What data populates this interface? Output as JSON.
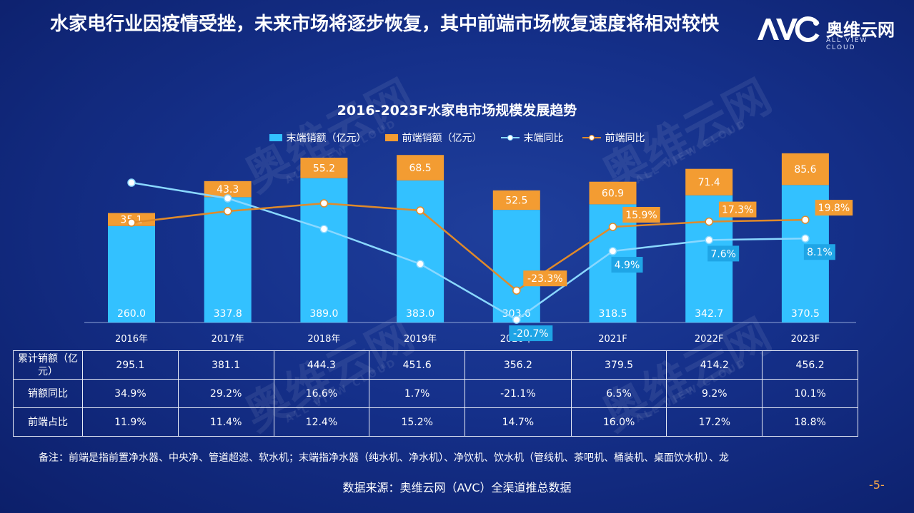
{
  "slide": {
    "title": "水家电行业因疫情受挫，未来市场将逐步恢复，其中前端市场恢复速度将相对较快",
    "logo_text": "奥维云网",
    "logo_sub": "ALL VIEW CLOUD",
    "logo_mark_icon": "avc-logo-icon",
    "watermark_text": "奥维云网",
    "watermark_sub": "ALL VIEW CLOUD",
    "note": "备注：前端是指前置净水器、中央净、管道超滤、软水机；末端指净水器（纯水机、净水机）、净饮机、饮水机（管线机、茶吧机、桶装机、桌面饮水机）、龙",
    "source": "数据来源：奥维云网（AVC）全渠道推总数据",
    "page_number": "-5-"
  },
  "colors": {
    "terminal_bar": "#33c1ff",
    "front_bar": "#f39c32",
    "terminal_line": "#8ad8ff",
    "front_line": "#e08a2a",
    "label_box_blue": "#1fa5e6",
    "label_box_orange": "#f39c32"
  },
  "chart_data": {
    "type": "bar",
    "title": "2016-2023F水家电市场规模发展趋势",
    "categories": [
      "2016年",
      "2017年",
      "2018年",
      "2019年",
      "2020年",
      "2021F",
      "2022F",
      "2023F"
    ],
    "stacked": true,
    "series": [
      {
        "name": "末端销额（亿元）",
        "type": "bar",
        "values": [
          260.0,
          337.8,
          389.0,
          383.0,
          303.6,
          318.5,
          342.7,
          370.5
        ]
      },
      {
        "name": "前端销额（亿元）",
        "type": "bar",
        "values": [
          35.1,
          43.3,
          55.2,
          68.5,
          52.5,
          60.9,
          71.4,
          85.6
        ]
      },
      {
        "name": "末端同比",
        "type": "line",
        "values": [
          null,
          null,
          null,
          null,
          -20.7,
          4.9,
          7.6,
          8.1
        ],
        "labels": [
          "",
          "",
          "",
          "",
          "-20.7%",
          "4.9%",
          "7.6%",
          "8.1%"
        ]
      },
      {
        "name": "前端同比",
        "type": "line",
        "values": [
          null,
          null,
          null,
          null,
          -23.3,
          15.9,
          17.3,
          19.8
        ],
        "labels": [
          "",
          "",
          "",
          "",
          "-23.3%",
          "15.9%",
          "17.3%",
          "19.8%"
        ]
      }
    ],
    "legend_position": "top",
    "grid": false
  },
  "table": {
    "rows": [
      {
        "label": "累计销额（亿元）",
        "values": [
          "295.1",
          "381.1",
          "444.3",
          "451.6",
          "356.2",
          "379.5",
          "414.2",
          "456.2"
        ]
      },
      {
        "label": "销额同比",
        "values": [
          "34.9%",
          "29.2%",
          "16.6%",
          "1.7%",
          "-21.1%",
          "6.5%",
          "9.2%",
          "10.1%"
        ]
      },
      {
        "label": "前端占比",
        "values": [
          "11.9%",
          "11.4%",
          "12.4%",
          "15.2%",
          "14.7%",
          "16.0%",
          "17.2%",
          "18.8%"
        ]
      }
    ]
  }
}
